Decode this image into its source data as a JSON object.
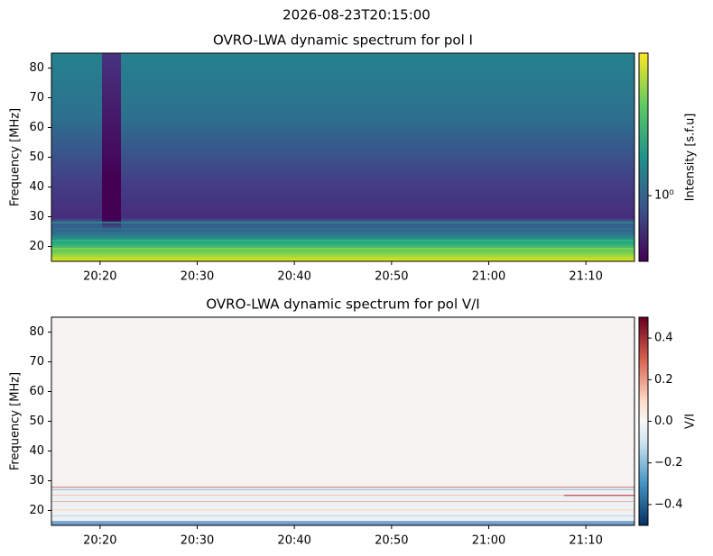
{
  "figure_title": "2026-08-23T20:15:00",
  "chart_data": [
    {
      "type": "heatmap",
      "title": "OVRO-LWA dynamic spectrum for pol I",
      "ylabel": "Frequency [MHz]",
      "xlim": [
        "20:15",
        "21:15"
      ],
      "xticks": [
        "20:20",
        "20:30",
        "20:40",
        "20:50",
        "21:00",
        "21:10"
      ],
      "ylim": [
        15,
        85
      ],
      "yticks": [
        20,
        30,
        40,
        50,
        60,
        70,
        80
      ],
      "colorbar": {
        "label": "Intensity [s.f.u]",
        "cmap": "viridis",
        "scale": "log",
        "clim": [
          0.5,
          4.5
        ],
        "ticks": [
          {
            "value": 1,
            "label": "10⁰"
          }
        ]
      }
    },
    {
      "type": "heatmap",
      "title": "OVRO-LWA dynamic spectrum for pol V/I",
      "ylabel": "Frequency [MHz]",
      "xlim": [
        "20:15",
        "21:15"
      ],
      "xticks": [
        "20:20",
        "20:30",
        "20:40",
        "20:50",
        "21:00",
        "21:10"
      ],
      "ylim": [
        15,
        85
      ],
      "yticks": [
        20,
        30,
        40,
        50,
        60,
        70,
        80
      ],
      "colorbar": {
        "label": "V/I",
        "cmap": "RdBu_r",
        "scale": "linear",
        "clim": [
          -0.5,
          0.5
        ],
        "ticks": [
          0.4,
          0.2,
          {
            "value": 0,
            "label": "0.0"
          },
          {
            "value": -0.2,
            "label": "−0.2"
          },
          {
            "value": -0.4,
            "label": "−0.4"
          }
        ]
      }
    }
  ]
}
